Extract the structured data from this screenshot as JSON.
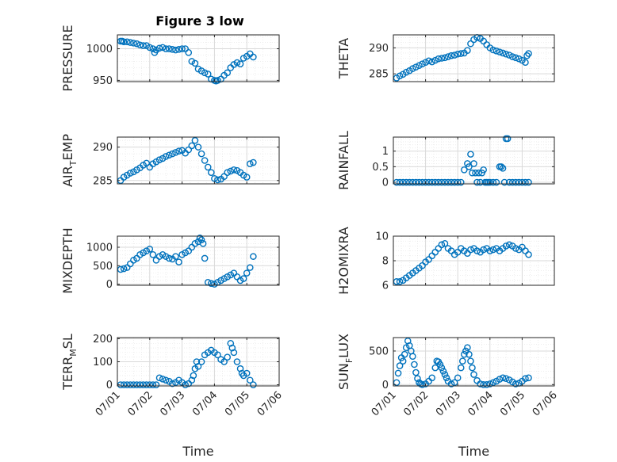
{
  "figure_title": "Figure 3 low",
  "colors": {
    "marker": "#0072BD",
    "axis": "#262626",
    "grid": "#d9d9d9"
  },
  "x_tick_labels": [
    "07/01",
    "07/02",
    "07/03",
    "07/04",
    "07/05",
    "07/06"
  ],
  "x_axis_label": "Time",
  "chart_data": [
    {
      "type": "scatter",
      "ylabel": "PRESSURE",
      "ylabel_sub": "",
      "xlim": [
        "07/01",
        "07/06"
      ],
      "ylim": [
        948,
        1022
      ],
      "yticks": [
        950,
        1000
      ],
      "x": [
        0.1,
        0.15,
        0.2,
        0.3,
        0.4,
        0.5,
        0.6,
        0.7,
        0.8,
        0.9,
        1.0,
        1.1,
        1.15,
        1.2,
        1.3,
        1.4,
        1.5,
        1.6,
        1.7,
        1.8,
        1.9,
        2.0,
        2.1,
        2.2,
        2.3,
        2.4,
        2.5,
        2.6,
        2.7,
        2.8,
        2.9,
        3.0,
        3.05,
        3.1,
        3.2,
        3.3,
        3.4,
        3.5,
        3.6,
        3.7,
        3.8,
        3.9,
        4.0,
        4.1,
        4.2
      ],
      "y": [
        1012,
        1012,
        1011,
        1011,
        1010,
        1009,
        1008,
        1006,
        1005,
        1005,
        1002,
        1000,
        994,
        998,
        1001,
        1002,
        1000,
        1000,
        999,
        998,
        999,
        1000,
        1000,
        994,
        980,
        977,
        968,
        965,
        962,
        960,
        952,
        950,
        949,
        950,
        952,
        958,
        962,
        970,
        975,
        978,
        976,
        985,
        988,
        992,
        987
      ],
      "marker": "o"
    },
    {
      "type": "scatter",
      "ylabel": "THETA",
      "ylabel_sub": "",
      "xlim": [
        "07/01",
        "07/06"
      ],
      "ylim": [
        283.5,
        292.5
      ],
      "yticks": [
        285,
        290
      ],
      "x": [
        0.1,
        0.2,
        0.3,
        0.4,
        0.5,
        0.6,
        0.7,
        0.8,
        0.9,
        1.0,
        1.1,
        1.2,
        1.3,
        1.4,
        1.5,
        1.6,
        1.7,
        1.8,
        1.9,
        2.0,
        2.1,
        2.2,
        2.3,
        2.4,
        2.5,
        2.6,
        2.7,
        2.8,
        2.9,
        3.0,
        3.1,
        3.2,
        3.3,
        3.4,
        3.5,
        3.6,
        3.7,
        3.8,
        3.9,
        4.0,
        4.1,
        4.15,
        4.2
      ],
      "y": [
        284.2,
        284.6,
        284.9,
        285.3,
        285.6,
        286.0,
        286.3,
        286.6,
        286.9,
        287.2,
        287.5,
        287.3,
        287.6,
        287.9,
        288.0,
        288.1,
        288.3,
        288.5,
        288.6,
        288.8,
        288.9,
        289.0,
        289.5,
        290.8,
        291.6,
        292.0,
        291.8,
        291.3,
        290.6,
        290.0,
        289.6,
        289.4,
        289.2,
        289.0,
        288.8,
        288.6,
        288.3,
        288.1,
        287.9,
        287.6,
        287.2,
        288.5,
        288.9
      ],
      "marker": "o"
    },
    {
      "type": "scatter",
      "ylabel": "AIR",
      "ylabel_sub": "T",
      "ylabel_rest": "EMP",
      "xlim": [
        "07/01",
        "07/06"
      ],
      "ylim": [
        284.5,
        291.5
      ],
      "yticks": [
        285,
        290
      ],
      "x": [
        0.1,
        0.2,
        0.3,
        0.4,
        0.5,
        0.6,
        0.7,
        0.8,
        0.9,
        1.0,
        1.1,
        1.2,
        1.3,
        1.4,
        1.5,
        1.6,
        1.7,
        1.8,
        1.9,
        2.0,
        2.1,
        2.2,
        2.3,
        2.4,
        2.5,
        2.6,
        2.7,
        2.8,
        2.9,
        3.0,
        3.1,
        3.2,
        3.3,
        3.4,
        3.5,
        3.6,
        3.7,
        3.8,
        3.9,
        4.0,
        4.1,
        4.2
      ],
      "y": [
        285.0,
        285.5,
        285.8,
        286.1,
        286.3,
        286.6,
        286.9,
        287.3,
        287.6,
        287.0,
        287.5,
        287.8,
        288.1,
        288.3,
        288.6,
        288.8,
        289.0,
        289.2,
        289.4,
        289.5,
        289.1,
        289.6,
        290.2,
        291.0,
        290.0,
        289.0,
        288.0,
        287.0,
        286.2,
        285.3,
        285.1,
        285.2,
        285.6,
        286.2,
        286.4,
        286.6,
        286.5,
        286.2,
        285.8,
        285.5,
        287.5,
        287.7
      ],
      "marker": "o"
    },
    {
      "type": "scatter",
      "ylabel": "RAINFALL",
      "ylabel_sub": "",
      "xlim": [
        "07/01",
        "07/06"
      ],
      "ylim": [
        -0.05,
        1.45
      ],
      "yticks": [
        0,
        0.5,
        1
      ],
      "x": [
        0.1,
        0.2,
        0.3,
        0.4,
        0.5,
        0.6,
        0.7,
        0.8,
        0.9,
        1.0,
        1.1,
        1.2,
        1.3,
        1.4,
        1.5,
        1.6,
        1.7,
        1.8,
        1.9,
        2.0,
        2.1,
        2.2,
        2.3,
        2.35,
        2.4,
        2.45,
        2.5,
        2.55,
        2.6,
        2.65,
        2.7,
        2.75,
        2.8,
        2.85,
        2.9,
        2.95,
        3.0,
        3.1,
        3.2,
        3.3,
        3.35,
        3.4,
        3.45,
        3.5,
        3.55,
        3.6,
        3.7,
        3.8,
        3.9,
        4.0,
        4.1,
        4.2
      ],
      "y": [
        0,
        0,
        0,
        0,
        0,
        0,
        0,
        0,
        0,
        0,
        0,
        0,
        0,
        0,
        0,
        0,
        0,
        0,
        0,
        0,
        0,
        0.4,
        0.6,
        0.5,
        0.9,
        0.3,
        0.6,
        0.3,
        0,
        0.3,
        0,
        0.3,
        0.4,
        0,
        0,
        0,
        0,
        0,
        0,
        0.5,
        0.5,
        0.45,
        0,
        1.4,
        1.4,
        0,
        0,
        0,
        0,
        0,
        0,
        0
      ],
      "marker": "o"
    },
    {
      "type": "scatter",
      "ylabel": "MIXDEPTH",
      "ylabel_sub": "",
      "xlim": [
        "07/01",
        "07/06"
      ],
      "ylim": [
        -30,
        1300
      ],
      "yticks": [
        0,
        500,
        1000
      ],
      "x": [
        0.1,
        0.2,
        0.3,
        0.4,
        0.5,
        0.6,
        0.7,
        0.8,
        0.9,
        1.0,
        1.1,
        1.2,
        1.3,
        1.4,
        1.5,
        1.6,
        1.7,
        1.8,
        1.9,
        2.0,
        2.1,
        2.2,
        2.3,
        2.4,
        2.5,
        2.55,
        2.6,
        2.65,
        2.7,
        2.8,
        2.9,
        3.0,
        3.1,
        3.2,
        3.3,
        3.4,
        3.5,
        3.6,
        3.7,
        3.8,
        3.9,
        4.0,
        4.1,
        4.2
      ],
      "y": [
        400,
        420,
        450,
        550,
        650,
        700,
        800,
        850,
        900,
        950,
        800,
        650,
        750,
        800,
        750,
        700,
        680,
        750,
        600,
        800,
        850,
        900,
        1000,
        1100,
        1150,
        1250,
        1200,
        1100,
        700,
        50,
        20,
        0,
        50,
        100,
        150,
        200,
        250,
        300,
        200,
        100,
        150,
        300,
        450,
        750
      ],
      "marker": "o"
    },
    {
      "type": "scatter",
      "ylabel": "H2OMIXRA",
      "ylabel_sub": "",
      "xlim": [
        "07/01",
        "07/06"
      ],
      "ylim": [
        6,
        10
      ],
      "yticks": [
        6,
        8,
        10
      ],
      "x": [
        0.1,
        0.2,
        0.3,
        0.4,
        0.5,
        0.6,
        0.7,
        0.8,
        0.9,
        1.0,
        1.1,
        1.2,
        1.3,
        1.4,
        1.5,
        1.6,
        1.7,
        1.8,
        1.9,
        2.0,
        2.1,
        2.2,
        2.3,
        2.4,
        2.5,
        2.6,
        2.7,
        2.8,
        2.9,
        3.0,
        3.1,
        3.2,
        3.3,
        3.4,
        3.5,
        3.6,
        3.7,
        3.8,
        3.9,
        4.0,
        4.1,
        4.2
      ],
      "y": [
        6.3,
        6.3,
        6.4,
        6.6,
        6.8,
        7.0,
        7.2,
        7.4,
        7.6,
        7.9,
        8.1,
        8.4,
        8.7,
        9.0,
        9.3,
        9.4,
        9.0,
        8.8,
        8.5,
        8.7,
        9.0,
        8.8,
        8.6,
        8.9,
        9.0,
        8.8,
        8.7,
        8.9,
        9.0,
        8.8,
        8.9,
        9.0,
        8.8,
        9.0,
        9.2,
        9.3,
        9.2,
        9.0,
        8.9,
        9.1,
        8.8,
        8.5
      ],
      "marker": "o"
    },
    {
      "type": "scatter",
      "ylabel": "TERR",
      "ylabel_sub": "M",
      "ylabel_rest": "SL",
      "xlim": [
        "07/01",
        "07/06"
      ],
      "ylim": [
        -5,
        205
      ],
      "yticks": [
        0,
        100,
        200
      ],
      "x": [
        0.1,
        0.2,
        0.3,
        0.4,
        0.5,
        0.6,
        0.7,
        0.8,
        0.9,
        1.0,
        1.1,
        1.2,
        1.3,
        1.4,
        1.5,
        1.6,
        1.7,
        1.8,
        1.9,
        2.0,
        2.1,
        2.2,
        2.3,
        2.35,
        2.4,
        2.45,
        2.5,
        2.6,
        2.7,
        2.8,
        2.9,
        3.0,
        3.1,
        3.2,
        3.3,
        3.4,
        3.5,
        3.55,
        3.6,
        3.7,
        3.8,
        3.85,
        3.9,
        4.0,
        4.1,
        4.2
      ],
      "y": [
        0,
        0,
        0,
        0,
        0,
        0,
        0,
        0,
        0,
        0,
        0,
        0,
        30,
        25,
        20,
        15,
        5,
        10,
        20,
        10,
        0,
        5,
        20,
        40,
        70,
        100,
        80,
        100,
        130,
        140,
        150,
        140,
        130,
        110,
        100,
        120,
        180,
        160,
        140,
        100,
        70,
        50,
        40,
        50,
        20,
        0
      ],
      "marker": "o"
    },
    {
      "type": "scatter",
      "ylabel": "SUN",
      "ylabel_sub": "F",
      "ylabel_rest": "LUX",
      "xlim": [
        "07/01",
        "07/06"
      ],
      "ylim": [
        -20,
        700
      ],
      "yticks": [
        0,
        500
      ],
      "x": [
        0.1,
        0.15,
        0.2,
        0.25,
        0.3,
        0.35,
        0.4,
        0.45,
        0.5,
        0.55,
        0.6,
        0.65,
        0.7,
        0.75,
        0.8,
        0.85,
        0.9,
        1.0,
        1.1,
        1.2,
        1.3,
        1.35,
        1.4,
        1.45,
        1.5,
        1.55,
        1.6,
        1.65,
        1.7,
        1.8,
        1.9,
        2.0,
        2.1,
        2.15,
        2.2,
        2.25,
        2.3,
        2.35,
        2.4,
        2.45,
        2.5,
        2.6,
        2.7,
        2.8,
        2.9,
        3.0,
        3.1,
        3.2,
        3.3,
        3.4,
        3.5,
        3.6,
        3.7,
        3.8,
        3.9,
        4.0,
        4.1,
        4.2
      ],
      "y": [
        30,
        170,
        280,
        400,
        350,
        450,
        550,
        650,
        580,
        500,
        420,
        300,
        180,
        90,
        30,
        10,
        0,
        10,
        50,
        100,
        250,
        350,
        340,
        300,
        250,
        200,
        150,
        100,
        50,
        10,
        30,
        100,
        250,
        350,
        450,
        500,
        550,
        450,
        350,
        250,
        150,
        60,
        10,
        0,
        0,
        10,
        30,
        50,
        80,
        100,
        90,
        70,
        40,
        10,
        20,
        50,
        90,
        100
      ],
      "marker": "o"
    }
  ]
}
